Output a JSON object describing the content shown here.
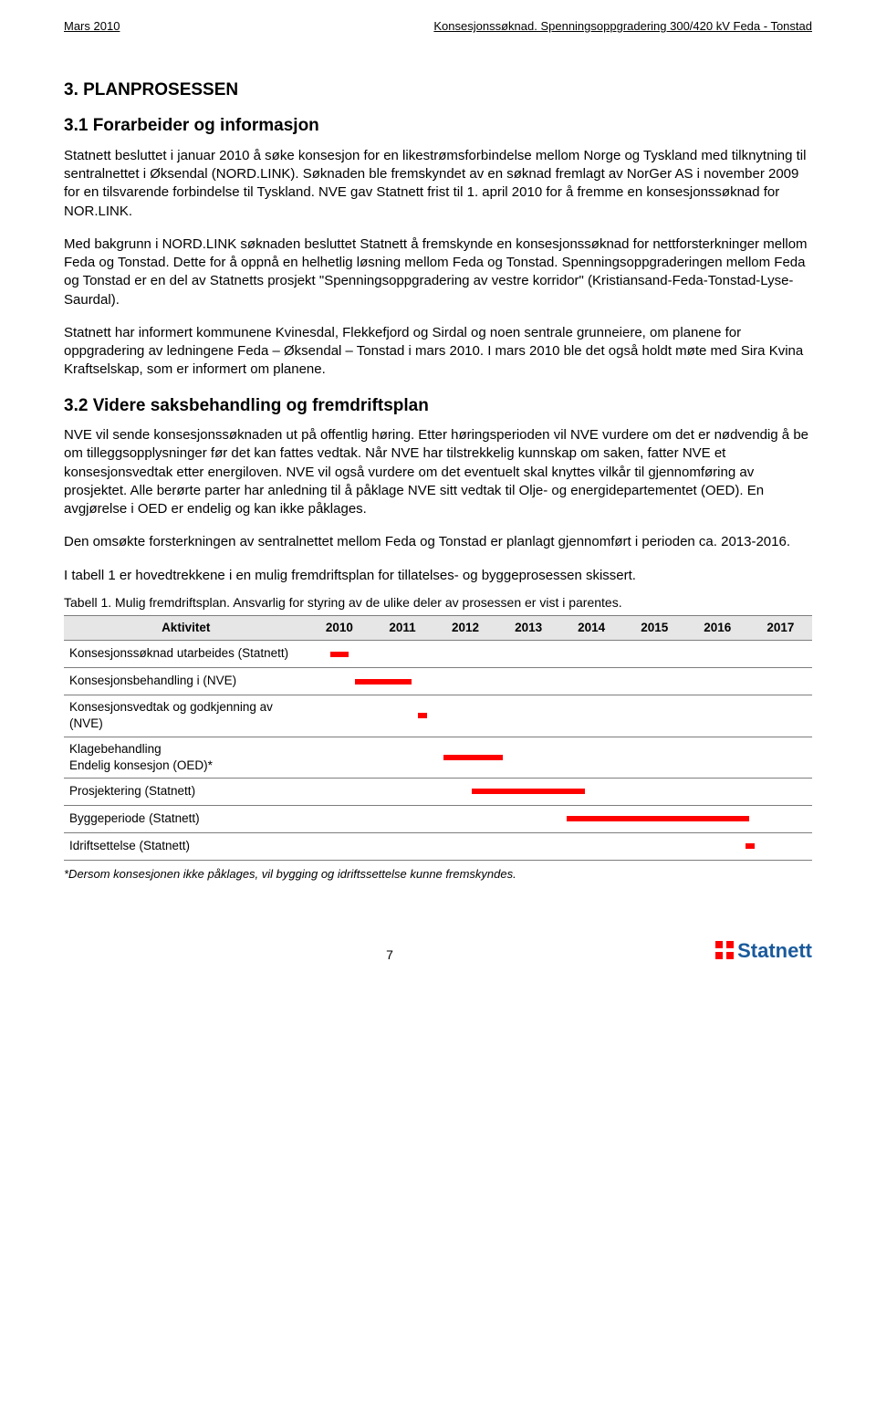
{
  "header": {
    "left": "Mars 2010",
    "right": "Konsesjonssøknad. Spenningsoppgradering 300/420 kV Feda - Tonstad"
  },
  "section3": {
    "heading": "3.    PLANPROSESSEN",
    "sub31": {
      "heading": "3.1    Forarbeider og informasjon",
      "p1": "Statnett besluttet i januar 2010 å søke konsesjon for en likestrømsforbindelse mellom Norge og Tyskland med tilknytning til sentralnettet i Øksendal (NORD.LINK). Søknaden ble fremskyndet av en søknad fremlagt av NorGer AS i november 2009 for en tilsvarende forbindelse til Tyskland. NVE gav Statnett frist til 1. april 2010 for å fremme en konsesjonssøknad for NOR.LINK.",
      "p2": "Med bakgrunn i NORD.LINK søknaden besluttet Statnett å fremskynde en konsesjonssøknad for nettforsterkninger mellom Feda og Tonstad. Dette for å oppnå en helhetlig løsning mellom Feda og Tonstad. Spenningsoppgraderingen mellom Feda og Tonstad er en del av Statnetts prosjekt \"Spenningsoppgradering av vestre korridor\" (Kristiansand-Feda-Tonstad-Lyse-Saurdal).",
      "p3": "Statnett har informert kommunene Kvinesdal, Flekkefjord og Sirdal og noen sentrale grunneiere, om planene for oppgradering av ledningene Feda – Øksendal – Tonstad i mars 2010.  I mars 2010 ble det også holdt møte med Sira Kvina Kraftselskap, som er informert om planene."
    },
    "sub32": {
      "heading": "3.2    Videre saksbehandling og fremdriftsplan",
      "p1": "NVE vil sende konsesjonssøknaden ut på offentlig høring. Etter høringsperioden vil NVE vurdere om det er nødvendig å be om tilleggsopplysninger før det kan fattes vedtak. Når NVE har tilstrekkelig kunnskap om saken, fatter NVE et konsesjonsvedtak etter energiloven. NVE vil også vurdere om det eventuelt skal knyttes vilkår til gjennomføring av prosjektet. Alle berørte parter har anledning til å påklage NVE sitt vedtak til Olje- og energidepartementet (OED). En avgjørelse i OED er endelig og kan ikke påklages.",
      "p2": "Den omsøkte forsterkningen av sentralnettet mellom Feda og Tonstad er planlagt gjennomført i perioden ca. 2013-2016.",
      "p3": "I tabell 1 er hovedtrekkene i en mulig fremdriftsplan for tillatelses- og byggeprosessen skissert.",
      "caption": "Tabell 1. Mulig fremdriftsplan.  Ansvarlig for styring av de ulike deler av prosessen er vist i parentes."
    }
  },
  "table": {
    "head_activity": "Aktivitet",
    "years": [
      "2010",
      "2011",
      "2012",
      "2013",
      "2014",
      "2015",
      "2016",
      "2017"
    ],
    "rows": [
      {
        "label": "Konsesjonssøknad utarbeides (Statnett)",
        "bar_start_col": 0,
        "bar_left_pct": 35,
        "bar_width_pct": 30
      },
      {
        "label": "Konsesjonsbehandling i (NVE)",
        "bar_start_col": 0,
        "bar_left_pct": 75,
        "bar_width_pct": 90
      },
      {
        "label": "Konsesjonsvedtak og godkjenning av (NVE)",
        "bar_start_col": 1,
        "bar_left_pct": 75,
        "bar_width_pct": 14
      },
      {
        "label": "Klagebehandling\n Endelig konsesjon (OED)*",
        "bar_start_col": 2,
        "bar_left_pct": 15,
        "bar_width_pct": 95
      },
      {
        "label": "Prosjektering (Statnett)",
        "bar_start_col": 2,
        "bar_left_pct": 60,
        "bar_width_pct": 180
      },
      {
        "label": "Byggeperiode (Statnett)",
        "bar_start_col": 4,
        "bar_left_pct": 10,
        "bar_width_pct": 290
      },
      {
        "label": "Idriftsettelse (Statnett)",
        "bar_start_col": 6,
        "bar_left_pct": 95,
        "bar_width_pct": 14
      }
    ],
    "bar_color": "#ff0000",
    "border_color": "#7d7d7d",
    "head_bg": "#e6e6e6"
  },
  "footnote": "*Dersom konsesjonen ikke påklages, vil bygging og idriftssettelse kunne fremskyndes.",
  "footer": {
    "page": "7",
    "brand": "Statnett"
  }
}
